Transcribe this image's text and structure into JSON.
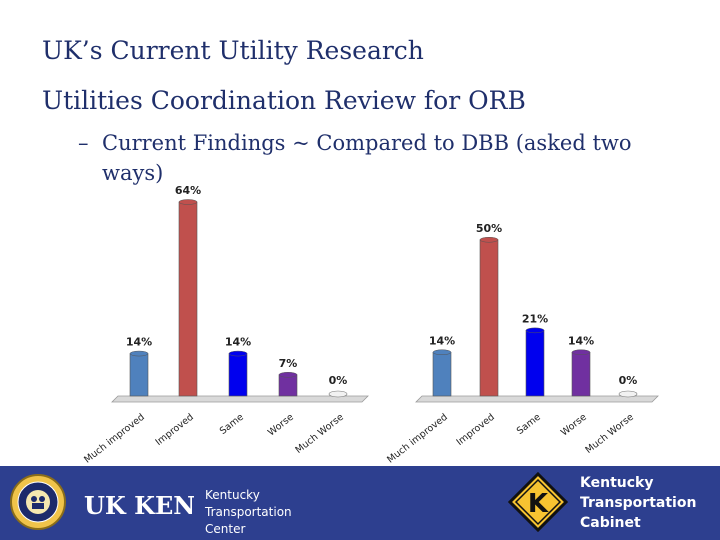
{
  "slide": {
    "title_line1": "UK’s Current Utility Research",
    "title_line2": "Utilities Coordination Review for ORB",
    "bullet_dash": "–",
    "bullet_text": "Current Findings ~ Compared to DBB (asked two ways)"
  },
  "chart_data": [
    {
      "type": "bar",
      "categories": [
        "Much improved",
        "Improved",
        "Same",
        "Worse",
        "Much Worse"
      ],
      "values": [
        14,
        64,
        14,
        7,
        0
      ],
      "value_labels": [
        "14%",
        "64%",
        "14%",
        "7%",
        "0%"
      ],
      "colors": [
        "#4f81bd",
        "#c0504d",
        "#0000ee",
        "#7030a0",
        "#dddddd"
      ],
      "ylim": [
        0,
        64
      ]
    },
    {
      "type": "bar",
      "categories": [
        "Much improved",
        "Improved",
        "Same",
        "Worse",
        "Much Worse"
      ],
      "values": [
        14,
        50,
        21,
        14,
        0
      ],
      "value_labels": [
        "14%",
        "50%",
        "21%",
        "14%",
        "0%"
      ],
      "colors": [
        "#4f81bd",
        "#c0504d",
        "#0000ee",
        "#7030a0",
        "#dddddd"
      ],
      "ylim": [
        0,
        64
      ]
    }
  ],
  "footer": {
    "bg_color": "#2d3f8f",
    "ktc_line1": "Kentucky",
    "ktc_line2": "Transportation",
    "ktc_line3": "Center",
    "kytc_line1": "Kentucky",
    "kytc_line2": "Transportation",
    "kytc_line3": "Cabinet",
    "uk_logo_text": "UK KENTUCKY",
    "sign_letter": "K"
  }
}
